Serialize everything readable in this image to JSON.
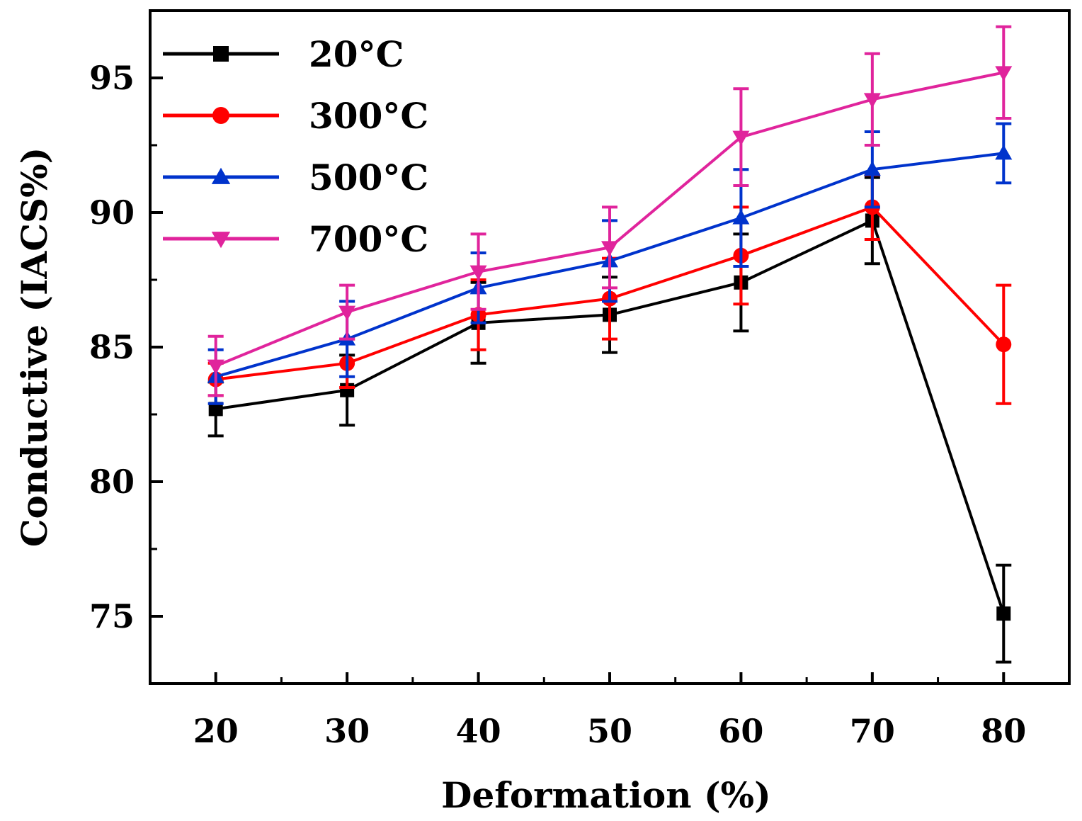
{
  "chart_data": {
    "type": "line",
    "title": "",
    "xlabel": "Deformation (%)",
    "ylabel": "Conductive (IACS%)",
    "x": [
      20,
      30,
      40,
      50,
      60,
      70,
      80
    ],
    "xlim": [
      15,
      85
    ],
    "ylim": [
      72.5,
      97.5
    ],
    "x_ticks": [
      20,
      30,
      40,
      50,
      60,
      70,
      80
    ],
    "y_ticks": [
      75,
      80,
      85,
      90,
      95
    ],
    "grid": false,
    "legend_position": "top-left",
    "series": [
      {
        "name": "20°C",
        "color": "#000000",
        "marker": "square",
        "values": [
          82.7,
          83.4,
          85.9,
          86.2,
          87.4,
          89.7,
          75.1
        ],
        "errors": [
          1.0,
          1.3,
          1.5,
          1.4,
          1.8,
          1.6,
          1.8
        ]
      },
      {
        "name": "300°C",
        "color": "#ff0000",
        "marker": "circle",
        "values": [
          83.8,
          84.4,
          86.2,
          86.8,
          88.4,
          90.2,
          85.1
        ],
        "errors": [
          0.6,
          0.9,
          1.3,
          1.5,
          1.8,
          1.2,
          2.2
        ]
      },
      {
        "name": "500°C",
        "color": "#0033cc",
        "marker": "triangle-up",
        "values": [
          83.9,
          85.3,
          87.2,
          88.2,
          89.8,
          91.6,
          92.2
        ],
        "errors": [
          1.0,
          1.4,
          1.3,
          1.5,
          1.8,
          1.4,
          1.1
        ]
      },
      {
        "name": "700°C",
        "color": "#e0249c",
        "marker": "triangle-down",
        "values": [
          84.3,
          86.3,
          87.8,
          88.7,
          92.8,
          94.2,
          95.2
        ],
        "errors": [
          1.1,
          1.0,
          1.4,
          1.5,
          1.8,
          1.7,
          1.7
        ]
      }
    ]
  }
}
